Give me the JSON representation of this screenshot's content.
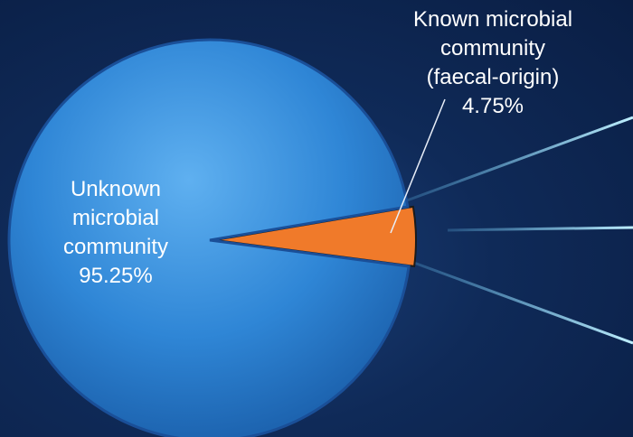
{
  "chart_data": {
    "type": "pie",
    "categories": [
      "Known microbial community (faecal-origin)",
      "Unknown microbial community"
    ],
    "values": [
      4.75,
      95.25
    ],
    "value_labels": [
      "4.75%",
      "95.25%"
    ],
    "colors": [
      "#f07a2a",
      "#2f86d6"
    ]
  }
}
